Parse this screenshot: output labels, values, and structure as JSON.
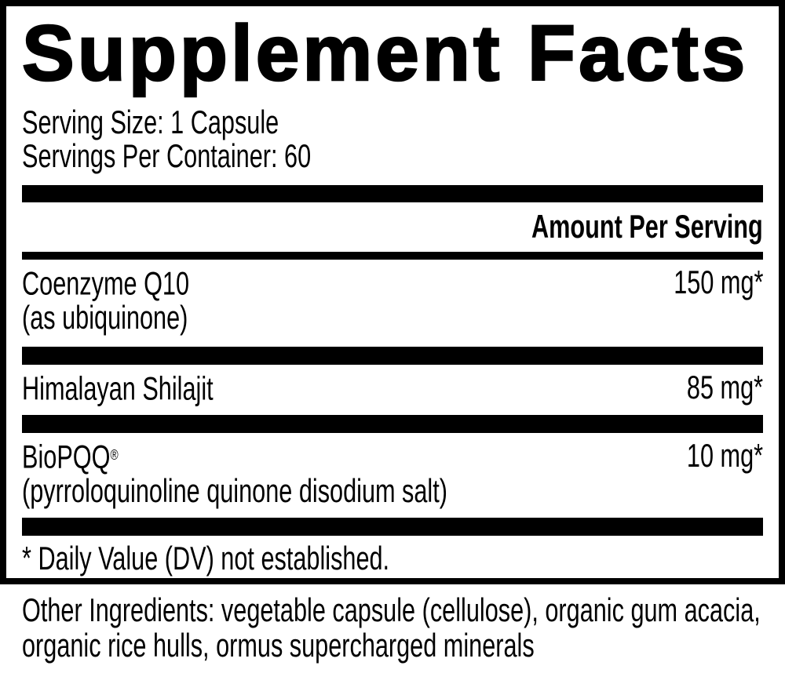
{
  "label": {
    "title": "Supplement Facts",
    "serving_size": "Serving Size: 1 Capsule",
    "servings_per_container": "Servings Per Container: 60",
    "amount_header": "Amount Per Serving",
    "rows": [
      {
        "name": "Coenzyme Q10",
        "name_mark": "",
        "detail": "(as ubiquinone)",
        "amount": "150 mg*"
      },
      {
        "name": "Himalayan Shilajit",
        "name_mark": "",
        "detail": "",
        "amount": "85 mg*"
      },
      {
        "name": "BioPQQ",
        "name_mark": "®",
        "detail": "(pyrroloquinoline quinone disodium salt)",
        "amount": "10 mg*"
      }
    ],
    "footnote": "* Daily Value (DV) not established.",
    "other_ingredients": "Other Ingredients: vegetable capsule (cellulose), organic gum acacia, organic rice hulls, ormus supercharged minerals"
  },
  "colors": {
    "text": "#000000",
    "background": "#ffffff",
    "bar": "#000000"
  }
}
